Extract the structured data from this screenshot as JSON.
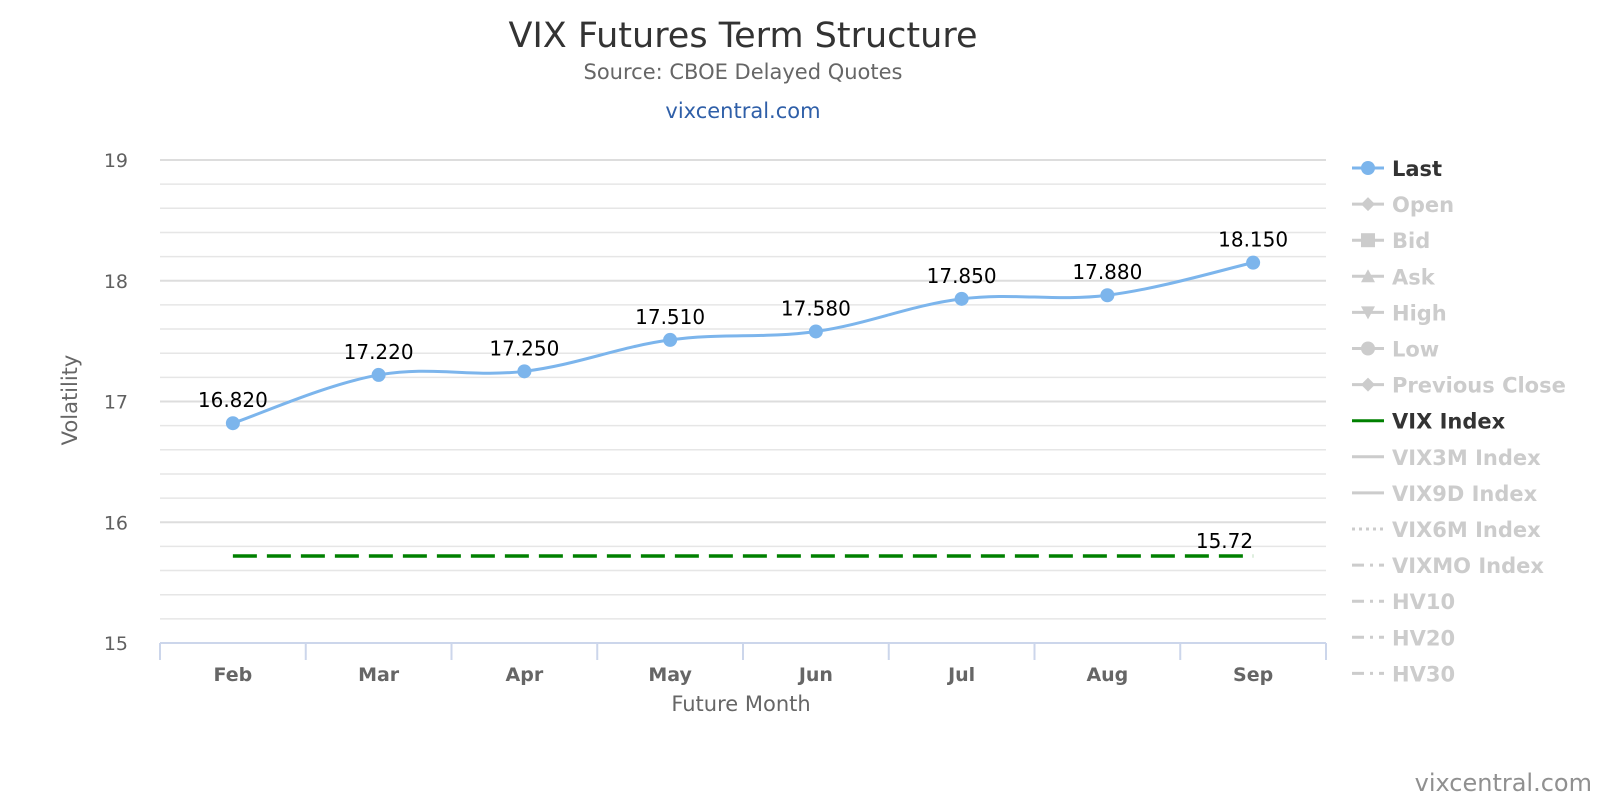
{
  "header": {
    "title": "VIX Futures Term Structure",
    "subtitle": "Source: CBOE Delayed Quotes",
    "link": "vixcentral.com"
  },
  "credits": "vixcentral.com",
  "colors": {
    "last": "#7cb5ec",
    "vix_index": "#008000",
    "grid": "#e6e6e6",
    "axis": "#ccd6eb",
    "legend_active": "#333333",
    "legend_inactive": "#cccccc"
  },
  "legend": [
    {
      "label": "Last",
      "symbol": "line-circle",
      "active": true
    },
    {
      "label": "Open",
      "symbol": "line-diamond",
      "active": false
    },
    {
      "label": "Bid",
      "symbol": "line-square",
      "active": false
    },
    {
      "label": "Ask",
      "symbol": "line-triangle",
      "active": false
    },
    {
      "label": "High",
      "symbol": "line-triangle-down",
      "active": false
    },
    {
      "label": "Low",
      "symbol": "line-circle",
      "active": false
    },
    {
      "label": "Previous Close",
      "symbol": "line-diamond",
      "active": false
    },
    {
      "label": "VIX Index",
      "symbol": "line",
      "active": true
    },
    {
      "label": "VIX3M Index",
      "symbol": "line",
      "active": false
    },
    {
      "label": "VIX9D Index",
      "symbol": "line",
      "active": false
    },
    {
      "label": "VIX6M Index",
      "symbol": "dotted",
      "active": false
    },
    {
      "label": "VIXMO Index",
      "symbol": "dashdot",
      "active": false
    },
    {
      "label": "HV10",
      "symbol": "dashdot",
      "active": false
    },
    {
      "label": "HV20",
      "symbol": "dashdot",
      "active": false
    },
    {
      "label": "HV30",
      "symbol": "dashdot",
      "active": false
    }
  ],
  "chart_data": {
    "type": "line",
    "title": "VIX Futures Term Structure",
    "subtitle": "Source: CBOE Delayed Quotes",
    "categories": [
      "Feb",
      "Mar",
      "Apr",
      "May",
      "Jun",
      "Jul",
      "Aug",
      "Sep"
    ],
    "xlabel": "Future Month",
    "ylabel": "Volatility",
    "ylim": [
      15,
      19
    ],
    "yticks": [
      15,
      16,
      17,
      18,
      19
    ],
    "grid": true,
    "legend_position": "right",
    "series": [
      {
        "name": "Last",
        "values": [
          16.82,
          17.22,
          17.25,
          17.51,
          17.58,
          17.85,
          17.88,
          18.15
        ],
        "labels": [
          "16.820",
          "17.220",
          "17.250",
          "17.510",
          "17.580",
          "17.850",
          "17.880",
          "18.150"
        ],
        "color": "#7cb5ec",
        "style": "smooth-line-with-markers"
      },
      {
        "name": "VIX Index",
        "values": [
          15.72,
          15.72,
          15.72,
          15.72,
          15.72,
          15.72,
          15.72,
          15.72
        ],
        "end_label": "15.72",
        "color": "#008000",
        "style": "dashed"
      }
    ]
  }
}
